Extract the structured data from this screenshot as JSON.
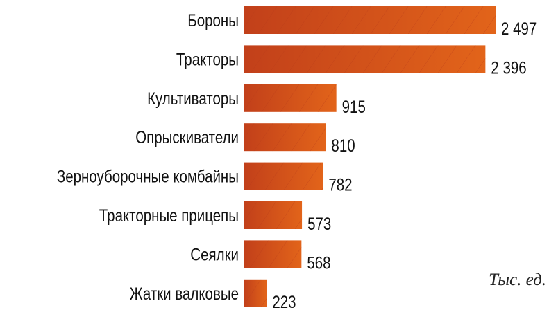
{
  "chart_data": {
    "type": "bar",
    "orientation": "horizontal",
    "categories": [
      "Бороны",
      "Тракторы",
      "Культиваторы",
      "Опрыскиватели",
      "Зерноуборочные комбайны",
      "Тракторные прицепы",
      "Сеялки",
      "Жатки валковые"
    ],
    "values": [
      2497,
      2396,
      915,
      810,
      782,
      573,
      568,
      223
    ],
    "value_labels": [
      "2 497",
      "2 396",
      "915",
      "810",
      "782",
      "573",
      "568",
      "223"
    ],
    "unit_label": "Тыс. ед.",
    "xlim": [
      0,
      2497
    ],
    "grid": false,
    "colors": {
      "bar_start": "#c2401a",
      "bar_end": "#e2641a",
      "hatch": "#b83a18"
    }
  }
}
